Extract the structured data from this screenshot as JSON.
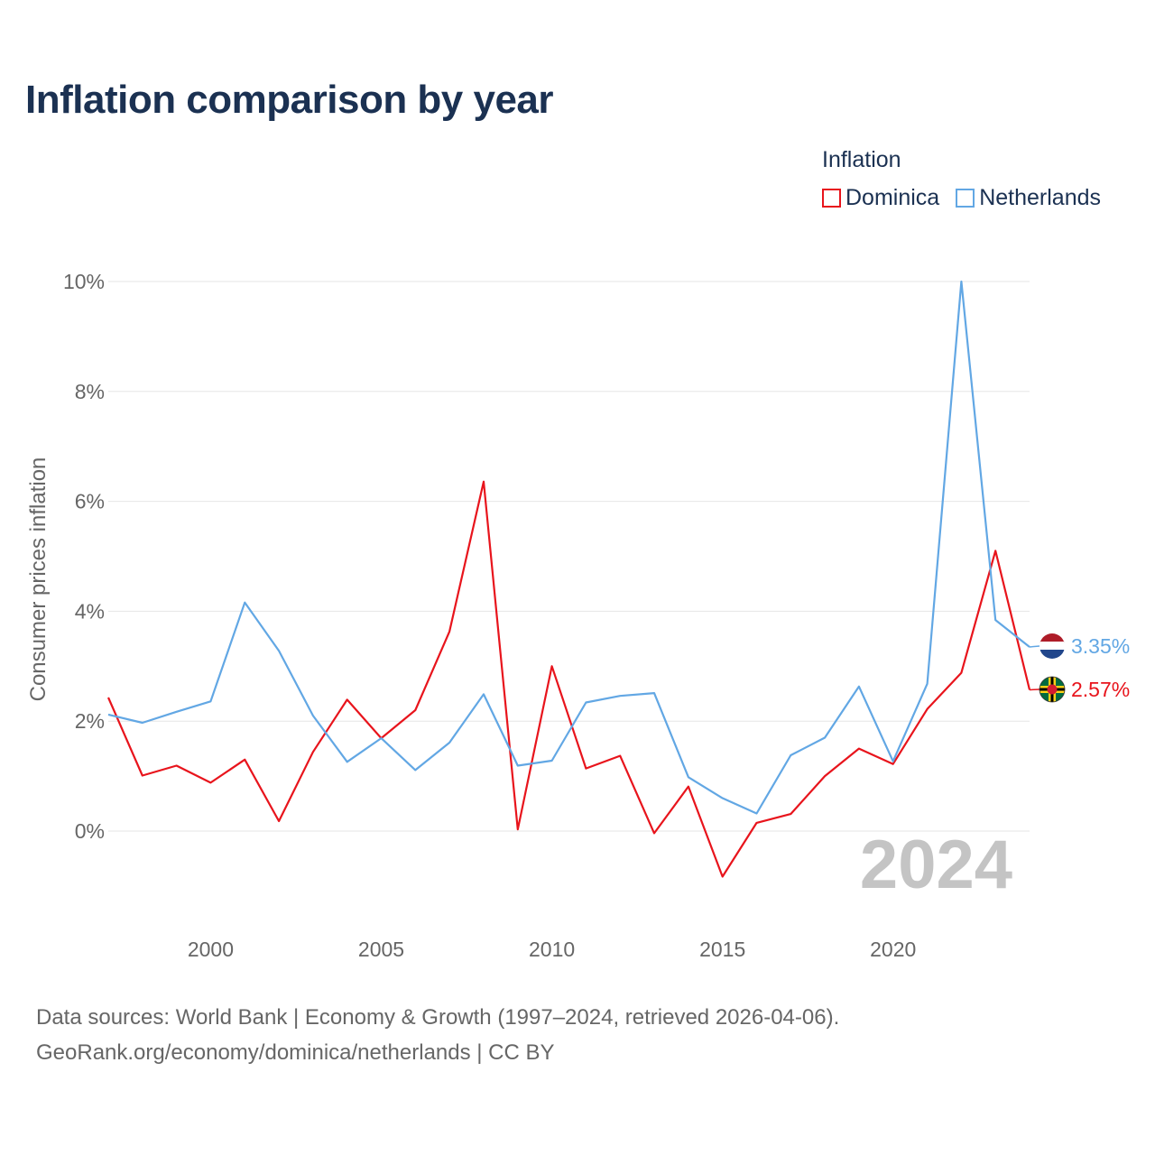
{
  "colors": {
    "dominica": "#e8141c",
    "netherlands": "#62a7e4",
    "grid": "#e6e6e6",
    "title": "#1b3152"
  },
  "legend": {
    "title": "Inflation",
    "items": [
      "Dominica",
      "Netherlands"
    ]
  },
  "footer": {
    "line1": "Data sources: World Bank | Economy & Growth (1997–2024, retrieved 2026-04-06).",
    "line2": "GeoRank.org/economy/dominica/netherlands | CC BY"
  },
  "chart_data": {
    "type": "line",
    "title": "Inflation comparison by year",
    "xlabel": "",
    "ylabel": "Consumer prices inflation",
    "x": [
      1997,
      1998,
      1999,
      2000,
      2001,
      2002,
      2003,
      2004,
      2005,
      2006,
      2007,
      2008,
      2009,
      2010,
      2011,
      2012,
      2013,
      2014,
      2015,
      2016,
      2017,
      2018,
      2019,
      2020,
      2021,
      2022,
      2023,
      2024
    ],
    "xlim": [
      1997,
      2024
    ],
    "ylim": [
      -0.5,
      10
    ],
    "xticks": [
      "2000",
      "2005",
      "2010",
      "2015",
      "2020"
    ],
    "yticks": [
      "0%",
      "2%",
      "4%",
      "6%",
      "8%",
      "10%"
    ],
    "current_year": "2024",
    "series": [
      {
        "name": "Dominica",
        "color": "#e8141c",
        "end_label": "2.57%",
        "values": [
          2.43,
          1.01,
          1.19,
          0.88,
          1.3,
          0.18,
          1.44,
          2.39,
          1.69,
          2.2,
          3.63,
          6.36,
          0.03,
          3.0,
          1.14,
          1.37,
          -0.04,
          0.81,
          -0.83,
          0.15,
          0.31,
          1.0,
          1.5,
          1.22,
          2.22,
          2.88,
          5.1,
          2.57
        ]
      },
      {
        "name": "Netherlands",
        "color": "#62a7e4",
        "end_label": "3.35%",
        "values": [
          2.12,
          1.97,
          2.17,
          2.36,
          4.16,
          3.28,
          2.1,
          1.26,
          1.69,
          1.11,
          1.61,
          2.49,
          1.19,
          1.28,
          2.34,
          2.46,
          2.51,
          0.98,
          0.6,
          0.32,
          1.38,
          1.7,
          2.63,
          1.27,
          2.68,
          10.0,
          3.84,
          3.35
        ]
      }
    ]
  }
}
